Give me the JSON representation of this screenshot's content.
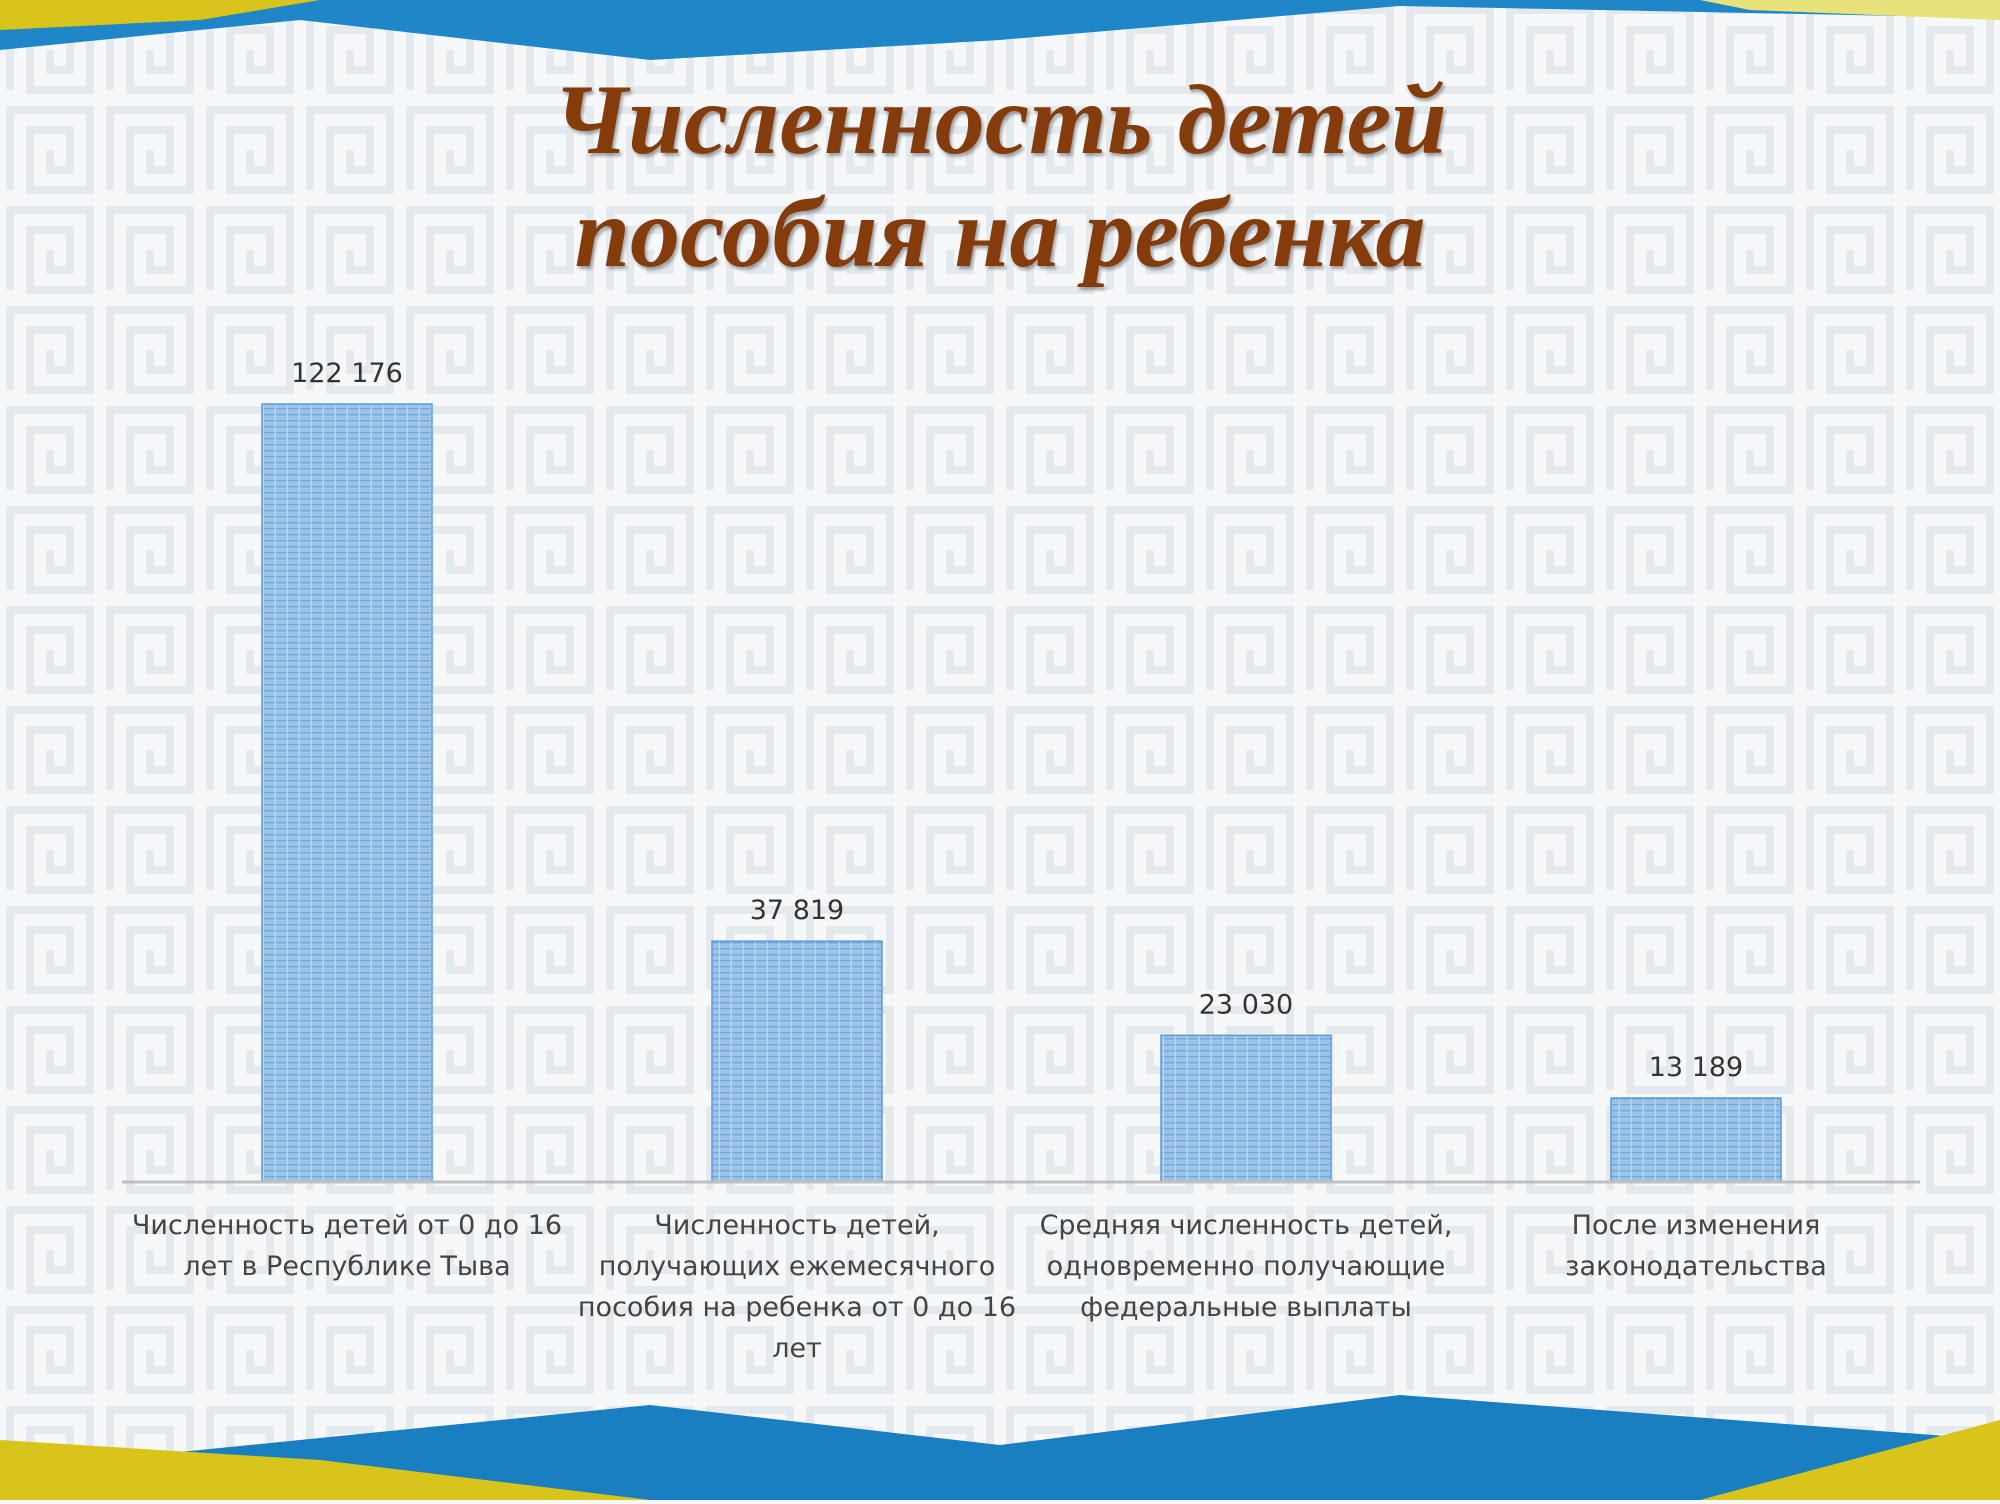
{
  "title_lines": [
    "Численность детей",
    "пособия на ребенка"
  ],
  "colors": {
    "title": "#843c0c",
    "bar": "#9dc3e6",
    "bar_line": "#5b9bd5",
    "accent_blue": "#1f86c8",
    "accent_yellow": "#d8c41a"
  },
  "chart_data": {
    "type": "bar",
    "categories": [
      [
        "Численность детей от 0 до 16",
        "лет в Республике Тыва"
      ],
      [
        "Численность детей,",
        "получающих ежемесячного",
        "пособия на ребенка от 0 до 16",
        "лет"
      ],
      [
        "Средняя численность детей,",
        "одновременно получающие",
        "федеральные выплаты"
      ],
      [
        "После изменения",
        "законодательства"
      ]
    ],
    "values": [
      122176,
      37819,
      23030,
      13189
    ],
    "data_labels": [
      "122 176",
      "37 819",
      "23 030",
      "13 189"
    ],
    "ylim": [
      0,
      122176
    ],
    "grid": false,
    "legend": "none"
  }
}
